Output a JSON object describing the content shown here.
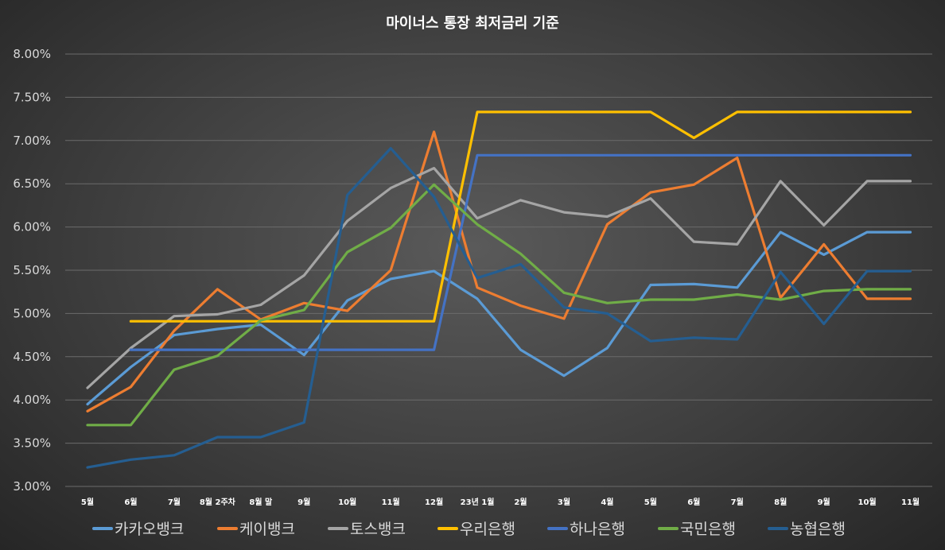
{
  "chart_data": {
    "type": "line",
    "title": "마이너스 통장 최저금리 기준",
    "xlabel": "",
    "ylabel": "",
    "ylim": [
      0.03,
      0.08
    ],
    "yticks": [
      "3.00%",
      "3.50%",
      "4.00%",
      "4.50%",
      "5.00%",
      "5.50%",
      "6.00%",
      "6.50%",
      "7.00%",
      "7.50%",
      "8.00%"
    ],
    "grid": true,
    "legend": "bottom",
    "categories": [
      "5월",
      "6월",
      "7월",
      "8월 2주차",
      "8월 말",
      "9월",
      "10월",
      "11월",
      "12월",
      "23년 1월",
      "2월",
      "3월",
      "4월",
      "5월",
      "6월",
      "7월",
      "8월",
      "9월",
      "10월",
      "11월"
    ],
    "series": [
      {
        "name": "카카오뱅크",
        "color": "#5b9bd5",
        "values": [
          0.0395,
          0.0438,
          0.0475,
          0.0482,
          0.0487,
          0.0452,
          0.0515,
          0.054,
          0.0549,
          0.0517,
          0.0458,
          0.0428,
          0.046,
          0.0533,
          0.0534,
          0.053,
          0.0594,
          0.0568,
          0.0594,
          0.0594
        ]
      },
      {
        "name": "케이뱅크",
        "color": "#ed7d31",
        "values": [
          0.0387,
          0.0415,
          0.048,
          0.0528,
          0.0493,
          0.0512,
          0.0503,
          0.055,
          0.071,
          0.053,
          0.0509,
          0.0494,
          0.0603,
          0.064,
          0.0649,
          0.068,
          0.0518,
          0.058,
          0.0517,
          0.0517
        ]
      },
      {
        "name": "토스뱅크",
        "color": "#a5a5a5",
        "values": [
          0.0414,
          0.046,
          0.0497,
          0.0499,
          0.051,
          0.0544,
          0.0607,
          0.0645,
          0.0668,
          0.061,
          0.0631,
          0.0617,
          0.0612,
          0.0633,
          0.0583,
          0.058,
          0.0653,
          0.0602,
          0.0653,
          0.0653
        ]
      },
      {
        "name": "우리은행",
        "color": "#ffc000",
        "values": [
          null,
          0.0491,
          0.0491,
          0.0491,
          0.0491,
          0.0491,
          0.0491,
          0.0491,
          0.0491,
          0.0733,
          0.0733,
          0.0733,
          0.0733,
          0.0733,
          0.0703,
          0.0733,
          0.0733,
          0.0733,
          0.0733,
          0.0733
        ]
      },
      {
        "name": "하나은행",
        "color": "#4472c4",
        "values": [
          null,
          0.0458,
          0.0458,
          0.0458,
          0.0458,
          0.0458,
          0.0458,
          0.0458,
          0.0458,
          0.0683,
          0.0683,
          0.0683,
          0.0683,
          0.0683,
          0.0683,
          0.0683,
          0.0683,
          0.0683,
          0.0683,
          0.0683
        ]
      },
      {
        "name": "국민은행",
        "color": "#70ad47",
        "values": [
          0.0371,
          0.0371,
          0.0435,
          0.0451,
          0.0492,
          0.0504,
          0.0571,
          0.0599,
          0.0649,
          0.0603,
          0.0569,
          0.0524,
          0.0512,
          0.0516,
          0.0516,
          0.0522,
          0.0516,
          0.0526,
          0.0528,
          0.0528
        ]
      },
      {
        "name": "농협은행",
        "color": "#255e91",
        "values": [
          0.0322,
          0.0331,
          0.0336,
          0.0357,
          0.0357,
          0.0374,
          0.0637,
          0.0691,
          0.0635,
          0.0541,
          0.0557,
          0.0507,
          0.05,
          0.0468,
          0.0472,
          0.047,
          0.0548,
          0.0488,
          0.0549,
          0.0549
        ]
      }
    ]
  }
}
